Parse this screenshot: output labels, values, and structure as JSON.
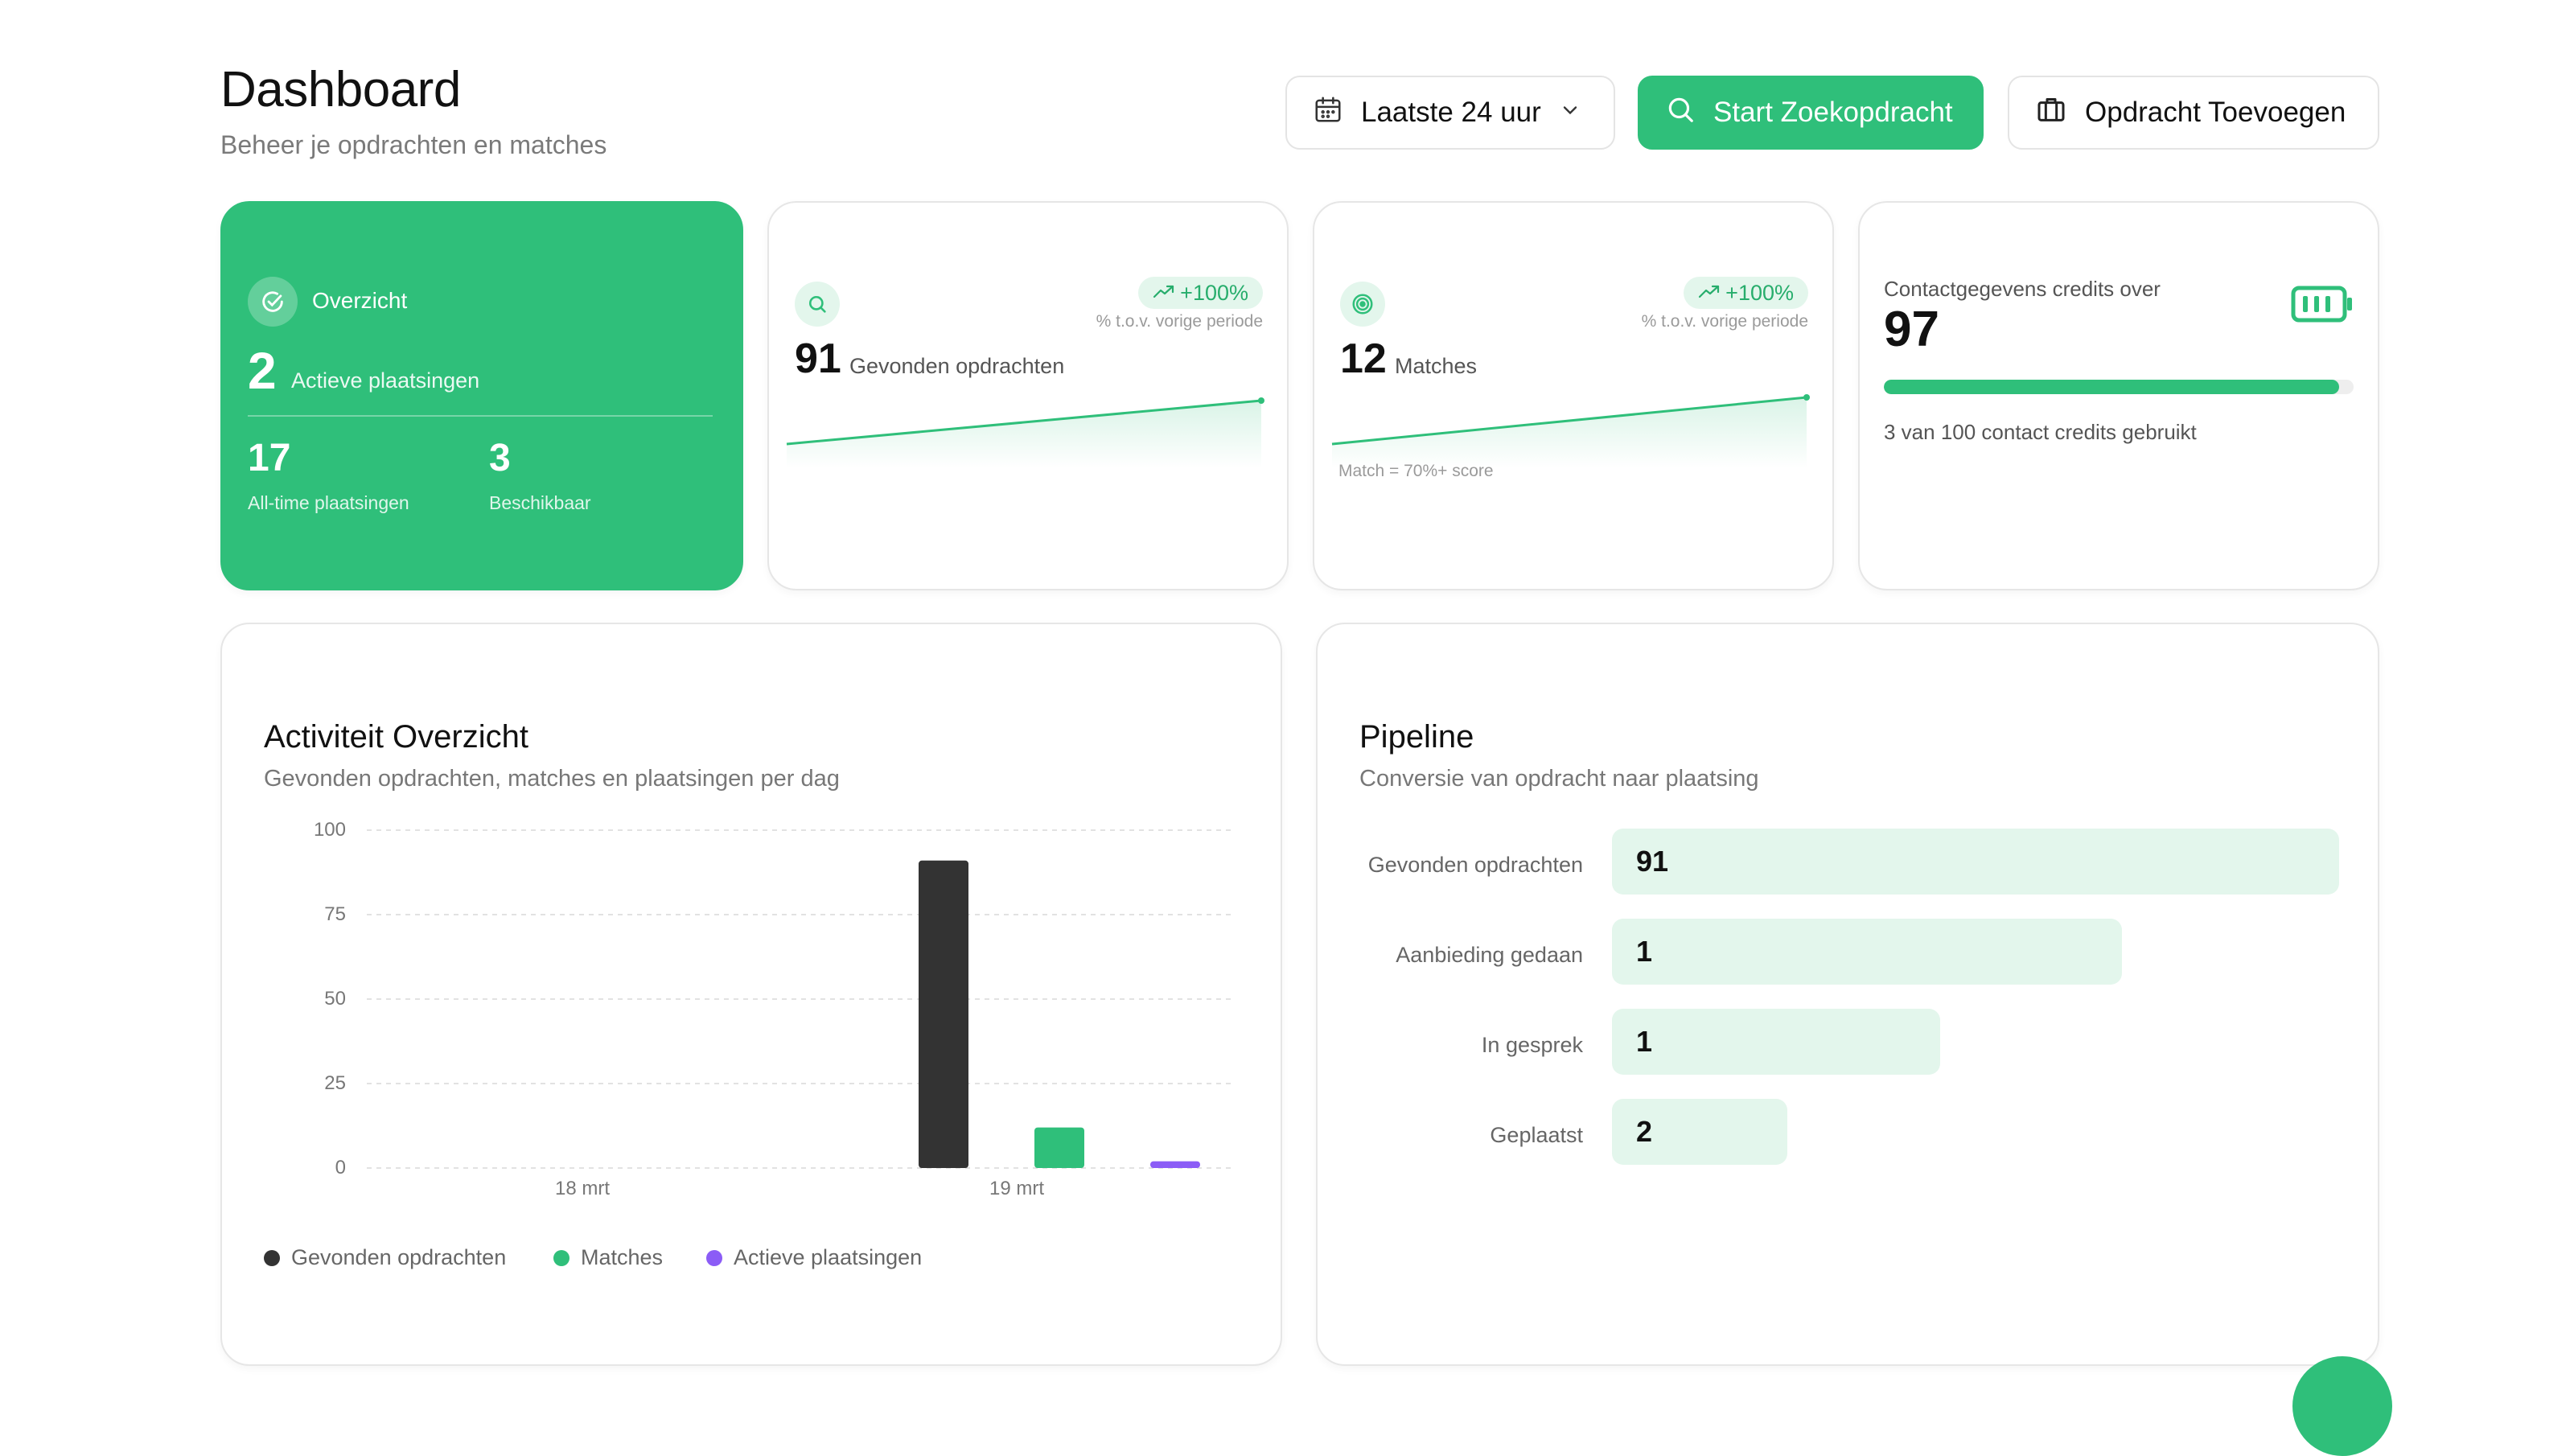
{
  "header": {
    "title": "Dashboard",
    "subtitle": "Beheer je opdrachten en matches",
    "date_filter": "Laatste 24 uur",
    "start_search": "Start Zoekopdracht",
    "add_assignment": "Opdracht Toevoegen"
  },
  "overview": {
    "label": "Overzicht",
    "active_value": "2",
    "active_label": "Actieve plaatsingen",
    "alltime_value": "17",
    "alltime_label": "All-time plaatsingen",
    "available_value": "3",
    "available_label": "Beschikbaar"
  },
  "found": {
    "badge": "+100%",
    "period": "% t.o.v. vorige periode",
    "value": "91",
    "label": "Gevonden opdrachten"
  },
  "matches": {
    "badge": "+100%",
    "period": "% t.o.v. vorige periode",
    "value": "12",
    "label": "Matches",
    "note": "Match = 70%+ score"
  },
  "credits": {
    "title": "Contactgegevens credits over",
    "value": "97",
    "remaining_fraction": 0.97,
    "usage": "3 van 100 contact credits gebruikt"
  },
  "activity": {
    "title": "Activiteit Overzicht",
    "subtitle": "Gevonden opdrachten, matches en plaatsingen per dag"
  },
  "pipeline": {
    "title": "Pipeline",
    "subtitle": "Conversie van opdracht naar plaatsing",
    "stages": [
      {
        "label": "Gevonden opdrachten",
        "value": "91"
      },
      {
        "label": "Aanbieding gedaan",
        "value": "1"
      },
      {
        "label": "In gesprek",
        "value": "1"
      },
      {
        "label": "Geplaatst",
        "value": "2"
      }
    ]
  },
  "colors": {
    "accent": "#2fbf7a",
    "accent_light": "#e3f6ec",
    "series_found": "#333333",
    "series_matches": "#2fbf7a",
    "series_placements": "#8b5cf6"
  },
  "chart_data": {
    "type": "bar",
    "title": "Activiteit Overzicht",
    "subtitle": "Gevonden opdrachten, matches en plaatsingen per dag",
    "x_ticks": [
      "18 mrt",
      "19 mrt"
    ],
    "y_ticks": [
      "0",
      "25",
      "50",
      "75",
      "100"
    ],
    "ylim": [
      0,
      100
    ],
    "grid": true,
    "legend_position": "bottom-left",
    "series": [
      {
        "name": "Gevonden opdrachten",
        "values": [
          0,
          91
        ]
      },
      {
        "name": "Matches",
        "values": [
          0,
          12
        ]
      },
      {
        "name": "Actieve plaatsingen",
        "values": [
          0,
          2
        ]
      }
    ]
  }
}
